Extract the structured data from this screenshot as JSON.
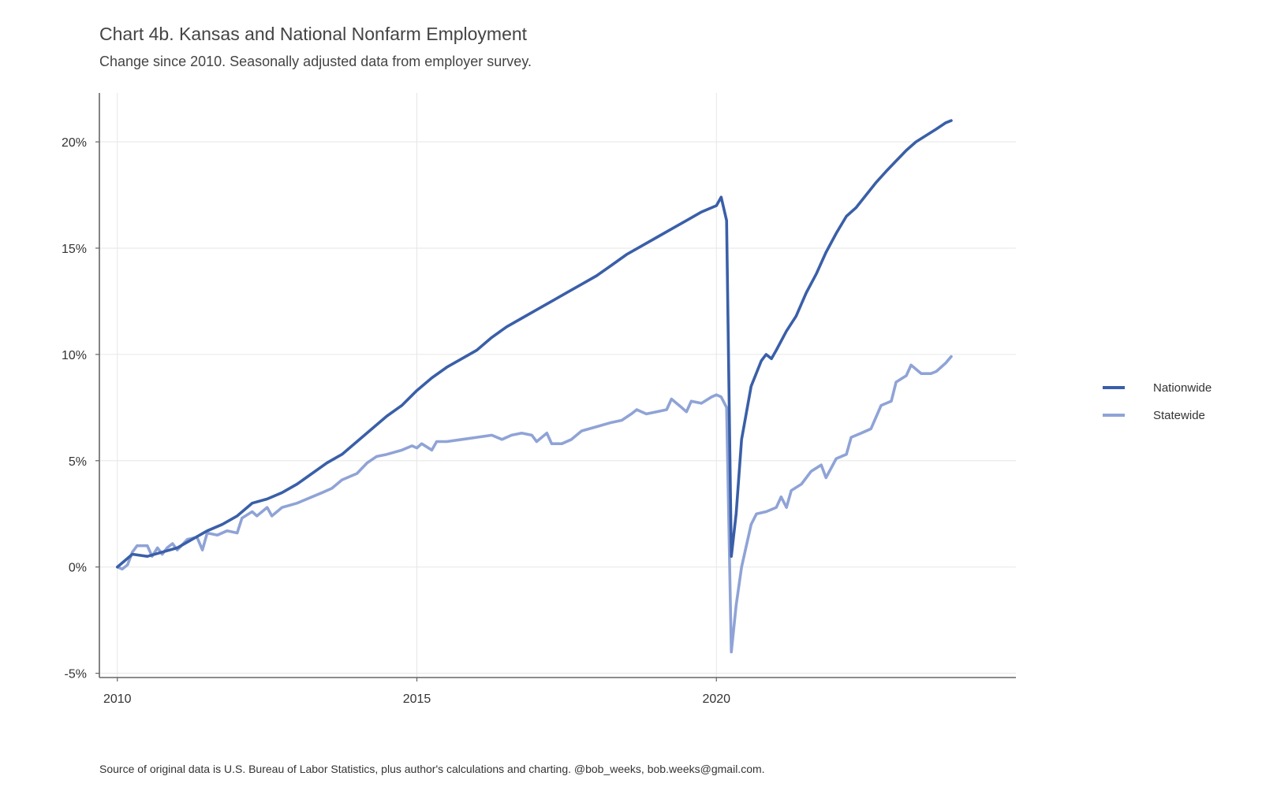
{
  "header": {
    "title": "Chart 4b. Kansas and National Nonfarm Employment",
    "subtitle": "Change since 2010. Seasonally adjusted data from employer survey."
  },
  "footer": {
    "caption": "Source of original data is U.S. Bureau of Labor Statistics, plus author's calculations and charting. @bob_weeks, bob.weeks@gmail.com."
  },
  "chart_data": {
    "type": "line",
    "title": "Chart 4b. Kansas and National Nonfarm Employment",
    "subtitle": "Change since 2010. Seasonally adjusted data from employer survey.",
    "xlabel": "",
    "ylabel": "",
    "x_ticks": [
      2010,
      2015,
      2020
    ],
    "y_ticks": [
      -5,
      0,
      5,
      10,
      15,
      20
    ],
    "y_tick_labels": [
      "-5%",
      "0%",
      "5%",
      "10%",
      "15%",
      "20%"
    ],
    "xlim": [
      2009.7,
      2025.0
    ],
    "ylim": [
      -5.2,
      22.3
    ],
    "grid": true,
    "legend_position": "right",
    "series": [
      {
        "name": "Nationwide",
        "color": "#3A5FA8",
        "points": [
          [
            2010.0,
            0.0
          ],
          [
            2010.25,
            0.6
          ],
          [
            2010.5,
            0.5
          ],
          [
            2010.75,
            0.7
          ],
          [
            2011.0,
            0.9
          ],
          [
            2011.25,
            1.3
          ],
          [
            2011.5,
            1.7
          ],
          [
            2011.75,
            2.0
          ],
          [
            2012.0,
            2.4
          ],
          [
            2012.25,
            3.0
          ],
          [
            2012.5,
            3.2
          ],
          [
            2012.75,
            3.5
          ],
          [
            2013.0,
            3.9
          ],
          [
            2013.25,
            4.4
          ],
          [
            2013.5,
            4.9
          ],
          [
            2013.75,
            5.3
          ],
          [
            2014.0,
            5.9
          ],
          [
            2014.25,
            6.5
          ],
          [
            2014.5,
            7.1
          ],
          [
            2014.75,
            7.6
          ],
          [
            2015.0,
            8.3
          ],
          [
            2015.25,
            8.9
          ],
          [
            2015.5,
            9.4
          ],
          [
            2015.75,
            9.8
          ],
          [
            2016.0,
            10.2
          ],
          [
            2016.25,
            10.8
          ],
          [
            2016.5,
            11.3
          ],
          [
            2016.75,
            11.7
          ],
          [
            2017.0,
            12.1
          ],
          [
            2017.25,
            12.5
          ],
          [
            2017.5,
            12.9
          ],
          [
            2017.75,
            13.3
          ],
          [
            2018.0,
            13.7
          ],
          [
            2018.25,
            14.2
          ],
          [
            2018.5,
            14.7
          ],
          [
            2018.75,
            15.1
          ],
          [
            2019.0,
            15.5
          ],
          [
            2019.25,
            15.9
          ],
          [
            2019.5,
            16.3
          ],
          [
            2019.75,
            16.7
          ],
          [
            2020.0,
            17.0
          ],
          [
            2020.08,
            17.4
          ],
          [
            2020.17,
            16.3
          ],
          [
            2020.25,
            0.5
          ],
          [
            2020.33,
            2.5
          ],
          [
            2020.42,
            6.0
          ],
          [
            2020.58,
            8.5
          ],
          [
            2020.75,
            9.7
          ],
          [
            2020.83,
            10.0
          ],
          [
            2020.92,
            9.8
          ],
          [
            2021.0,
            10.2
          ],
          [
            2021.17,
            11.1
          ],
          [
            2021.33,
            11.8
          ],
          [
            2021.5,
            12.9
          ],
          [
            2021.67,
            13.8
          ],
          [
            2021.83,
            14.8
          ],
          [
            2022.0,
            15.7
          ],
          [
            2022.17,
            16.5
          ],
          [
            2022.33,
            16.9
          ],
          [
            2022.5,
            17.5
          ],
          [
            2022.67,
            18.1
          ],
          [
            2022.83,
            18.6
          ],
          [
            2023.0,
            19.1
          ],
          [
            2023.17,
            19.6
          ],
          [
            2023.33,
            20.0
          ],
          [
            2023.5,
            20.3
          ],
          [
            2023.67,
            20.6
          ],
          [
            2023.83,
            20.9
          ],
          [
            2023.92,
            21.0
          ]
        ]
      },
      {
        "name": "Statewide",
        "color": "#8FA3D6",
        "points": [
          [
            2010.0,
            0.0
          ],
          [
            2010.08,
            -0.1
          ],
          [
            2010.17,
            0.1
          ],
          [
            2010.25,
            0.7
          ],
          [
            2010.33,
            1.0
          ],
          [
            2010.5,
            1.0
          ],
          [
            2010.58,
            0.5
          ],
          [
            2010.67,
            0.9
          ],
          [
            2010.75,
            0.6
          ],
          [
            2010.83,
            0.9
          ],
          [
            2010.92,
            1.1
          ],
          [
            2011.0,
            0.8
          ],
          [
            2011.17,
            1.3
          ],
          [
            2011.33,
            1.4
          ],
          [
            2011.42,
            0.8
          ],
          [
            2011.5,
            1.6
          ],
          [
            2011.67,
            1.5
          ],
          [
            2011.83,
            1.7
          ],
          [
            2012.0,
            1.6
          ],
          [
            2012.08,
            2.3
          ],
          [
            2012.25,
            2.6
          ],
          [
            2012.33,
            2.4
          ],
          [
            2012.5,
            2.8
          ],
          [
            2012.58,
            2.4
          ],
          [
            2012.75,
            2.8
          ],
          [
            2013.0,
            3.0
          ],
          [
            2013.25,
            3.3
          ],
          [
            2013.42,
            3.5
          ],
          [
            2013.58,
            3.7
          ],
          [
            2013.75,
            4.1
          ],
          [
            2014.0,
            4.4
          ],
          [
            2014.17,
            4.9
          ],
          [
            2014.33,
            5.2
          ],
          [
            2014.5,
            5.3
          ],
          [
            2014.75,
            5.5
          ],
          [
            2014.92,
            5.7
          ],
          [
            2015.0,
            5.6
          ],
          [
            2015.08,
            5.8
          ],
          [
            2015.25,
            5.5
          ],
          [
            2015.33,
            5.9
          ],
          [
            2015.5,
            5.9
          ],
          [
            2015.75,
            6.0
          ],
          [
            2016.0,
            6.1
          ],
          [
            2016.25,
            6.2
          ],
          [
            2016.42,
            6.0
          ],
          [
            2016.58,
            6.2
          ],
          [
            2016.75,
            6.3
          ],
          [
            2016.92,
            6.2
          ],
          [
            2017.0,
            5.9
          ],
          [
            2017.17,
            6.3
          ],
          [
            2017.25,
            5.8
          ],
          [
            2017.42,
            5.8
          ],
          [
            2017.58,
            6.0
          ],
          [
            2017.75,
            6.4
          ],
          [
            2018.0,
            6.6
          ],
          [
            2018.25,
            6.8
          ],
          [
            2018.42,
            6.9
          ],
          [
            2018.58,
            7.2
          ],
          [
            2018.67,
            7.4
          ],
          [
            2018.83,
            7.2
          ],
          [
            2019.0,
            7.3
          ],
          [
            2019.17,
            7.4
          ],
          [
            2019.25,
            7.9
          ],
          [
            2019.42,
            7.5
          ],
          [
            2019.5,
            7.3
          ],
          [
            2019.58,
            7.8
          ],
          [
            2019.75,
            7.7
          ],
          [
            2019.92,
            8.0
          ],
          [
            2020.0,
            8.1
          ],
          [
            2020.08,
            8.0
          ],
          [
            2020.17,
            7.5
          ],
          [
            2020.25,
            -4.0
          ],
          [
            2020.33,
            -1.8
          ],
          [
            2020.42,
            0.0
          ],
          [
            2020.58,
            2.0
          ],
          [
            2020.67,
            2.5
          ],
          [
            2020.83,
            2.6
          ],
          [
            2021.0,
            2.8
          ],
          [
            2021.08,
            3.3
          ],
          [
            2021.17,
            2.8
          ],
          [
            2021.25,
            3.6
          ],
          [
            2021.42,
            3.9
          ],
          [
            2021.58,
            4.5
          ],
          [
            2021.75,
            4.8
          ],
          [
            2021.83,
            4.2
          ],
          [
            2022.0,
            5.1
          ],
          [
            2022.17,
            5.3
          ],
          [
            2022.25,
            6.1
          ],
          [
            2022.42,
            6.3
          ],
          [
            2022.58,
            6.5
          ],
          [
            2022.75,
            7.6
          ],
          [
            2022.92,
            7.8
          ],
          [
            2023.0,
            8.7
          ],
          [
            2023.17,
            9.0
          ],
          [
            2023.25,
            9.5
          ],
          [
            2023.42,
            9.1
          ],
          [
            2023.58,
            9.1
          ],
          [
            2023.67,
            9.2
          ],
          [
            2023.75,
            9.4
          ],
          [
            2023.83,
            9.6
          ],
          [
            2023.92,
            9.9
          ]
        ]
      }
    ]
  }
}
